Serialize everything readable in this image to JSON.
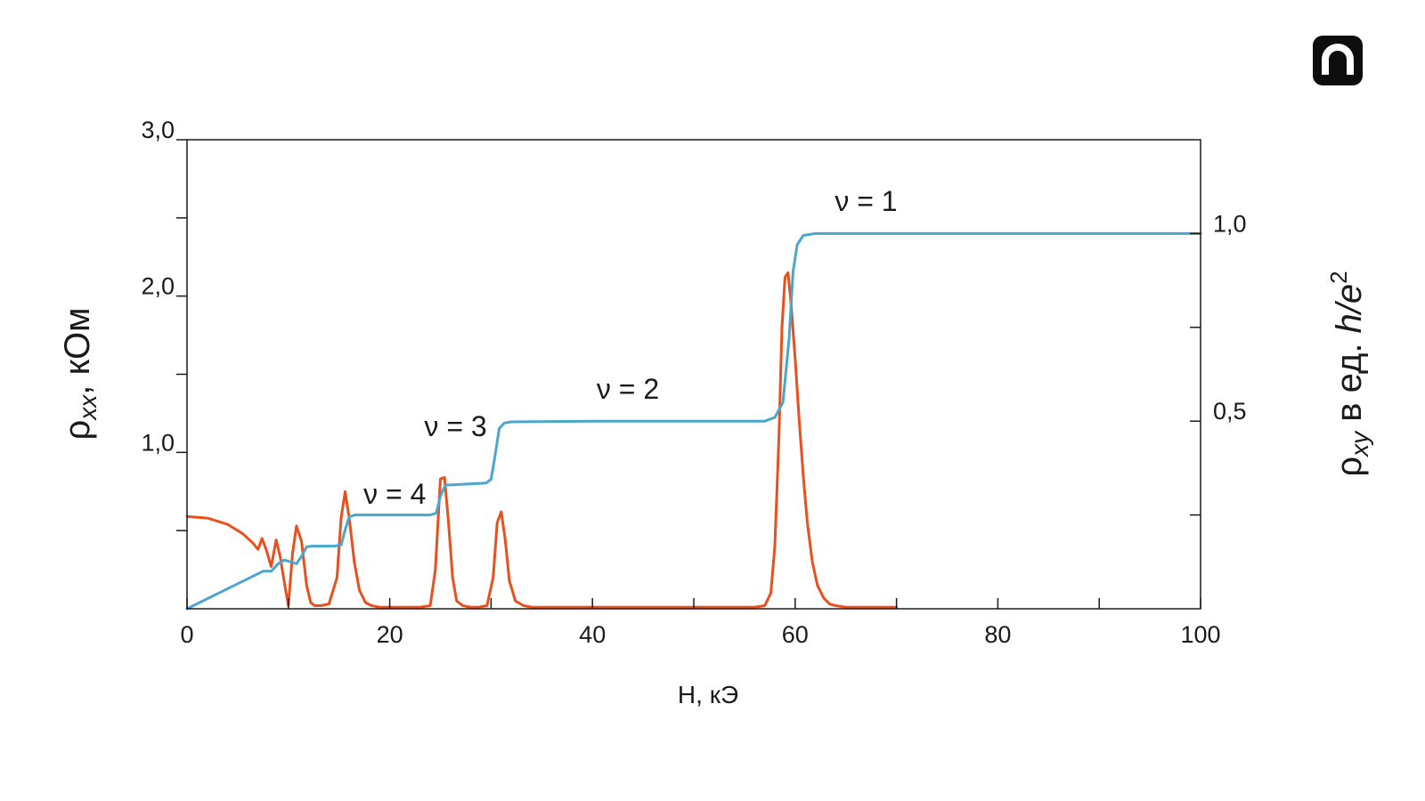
{
  "brand": {
    "icon": "publisher-logo-icon"
  },
  "colors": {
    "rho_xx": "#e8501e",
    "rho_xy": "#4ba6cb",
    "axis": "#1a1a1a"
  },
  "chart_data": {
    "type": "line",
    "xlabel": "H, кЭ",
    "ylabel_left": {
      "base": "ρ",
      "sub": "xx",
      "rest": ", кОм"
    },
    "ylabel_right": {
      "base": "ρ",
      "sub": "xy",
      "rest": " в ед. ",
      "italic": "h/e",
      "sup": "2"
    },
    "xlim": [
      0,
      100
    ],
    "ylim_left": [
      0,
      3.0
    ],
    "ylim_right": [
      0,
      1.25
    ],
    "x_ticks": [
      0,
      10,
      20,
      30,
      40,
      50,
      60,
      70,
      80,
      90,
      100
    ],
    "x_tick_labels": [
      "0",
      "",
      "20",
      "",
      "40",
      "",
      "60",
      "",
      "80",
      "",
      "100"
    ],
    "y_left_ticks": [
      0.5,
      1.0,
      1.5,
      2.0,
      2.5,
      3.0
    ],
    "y_left_tick_labels": [
      "",
      "1,0",
      "",
      "2,0",
      "",
      "3,0"
    ],
    "y_right_ticks": [
      0.25,
      0.5,
      0.75,
      1.0
    ],
    "y_right_tick_labels": [
      "",
      "0,5",
      "",
      "1,0"
    ],
    "grid": false,
    "series": [
      {
        "axis": "left",
        "values_x": [
          0,
          2,
          4,
          5.5,
          6.5,
          7,
          7.4,
          7.8,
          8.3,
          8.8,
          9.2,
          9.6,
          10,
          10.4,
          10.8,
          11.3,
          11.8,
          12.2,
          12.6,
          13.2,
          14,
          14.8,
          15.2,
          15.6,
          16,
          16.5,
          17,
          17.6,
          18.2,
          19,
          20,
          21,
          22,
          23,
          24,
          24.5,
          25,
          25.4,
          25.8,
          26.2,
          26.6,
          27.2,
          28,
          28.8,
          29.6,
          30.2,
          30.6,
          31,
          31.4,
          31.8,
          32.4,
          33.2,
          34,
          40,
          50,
          56,
          57,
          57.6,
          58,
          58.4,
          58.7,
          59,
          59.3,
          59.6,
          60,
          60.4,
          60.8,
          61.2,
          61.7,
          62.2,
          62.8,
          63.4,
          64,
          65,
          70
        ],
        "values_y": [
          0.59,
          0.58,
          0.54,
          0.48,
          0.42,
          0.38,
          0.45,
          0.38,
          0.27,
          0.44,
          0.33,
          0.17,
          0.02,
          0.35,
          0.53,
          0.43,
          0.15,
          0.04,
          0.02,
          0.02,
          0.03,
          0.2,
          0.58,
          0.75,
          0.58,
          0.3,
          0.12,
          0.04,
          0.02,
          0.01,
          0.01,
          0.01,
          0.01,
          0.01,
          0.02,
          0.25,
          0.83,
          0.84,
          0.55,
          0.2,
          0.05,
          0.02,
          0.01,
          0.01,
          0.02,
          0.2,
          0.55,
          0.62,
          0.44,
          0.18,
          0.05,
          0.02,
          0.01,
          0.01,
          0.01,
          0.01,
          0.02,
          0.1,
          0.4,
          1.1,
          1.8,
          2.12,
          2.15,
          1.95,
          1.6,
          1.2,
          0.85,
          0.55,
          0.3,
          0.15,
          0.07,
          0.03,
          0.02,
          0.01,
          0.01
        ]
      },
      {
        "axis": "right",
        "values_x": [
          0,
          7.5,
          8.3,
          9,
          9.6,
          10.2,
          10.8,
          11.3,
          11.8,
          12.3,
          14.5,
          15.2,
          15.6,
          16,
          16.6,
          24,
          24.6,
          25,
          25.5,
          26,
          29.5,
          30,
          30.4,
          30.8,
          31.3,
          32,
          40,
          50,
          57,
          58,
          58.8,
          59.4,
          59.8,
          60.2,
          60.8,
          62,
          70,
          100
        ],
        "values_y": [
          0,
          0.1,
          0.1,
          0.12,
          0.13,
          0.125,
          0.12,
          0.14,
          0.165,
          0.167,
          0.167,
          0.17,
          0.21,
          0.245,
          0.25,
          0.25,
          0.255,
          0.3,
          0.33,
          0.33,
          0.335,
          0.345,
          0.41,
          0.48,
          0.495,
          0.498,
          0.5,
          0.5,
          0.5,
          0.51,
          0.55,
          0.72,
          0.9,
          0.97,
          0.995,
          1.0,
          1.0,
          1.0
        ]
      }
    ],
    "annotations": [
      {
        "text": "ν = 4",
        "x": 20.5,
        "y_right": 0.28
      },
      {
        "text": "ν = 3",
        "x": 26.5,
        "y_right": 0.46
      },
      {
        "text": "ν = 2",
        "x": 43.5,
        "y_right": 0.56
      },
      {
        "text": "ν = 1",
        "x": 67,
        "y_right": 1.06
      }
    ]
  }
}
